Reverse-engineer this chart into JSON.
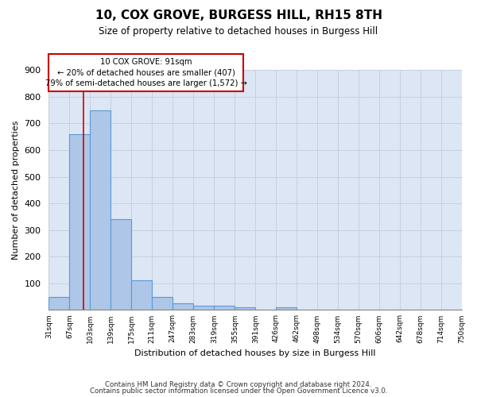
{
  "title": "10, COX GROVE, BURGESS HILL, RH15 8TH",
  "subtitle": "Size of property relative to detached houses in Burgess Hill",
  "xlabel": "Distribution of detached houses by size in Burgess Hill",
  "ylabel": "Number of detached properties",
  "footnote1": "Contains HM Land Registry data © Crown copyright and database right 2024.",
  "footnote2": "Contains public sector information licensed under the Open Government Licence v3.0.",
  "bar_edges": [
    31,
    67,
    103,
    139,
    175,
    211,
    247,
    283,
    319,
    355,
    391,
    426,
    462,
    498,
    534,
    570,
    606,
    642,
    678,
    714,
    750
  ],
  "bar_heights": [
    50,
    660,
    750,
    340,
    110,
    50,
    25,
    15,
    15,
    10,
    0,
    10,
    0,
    0,
    0,
    0,
    0,
    0,
    0,
    0
  ],
  "bar_color": "#aec6e8",
  "bar_edgecolor": "#5b9bd5",
  "bar_edgewidth": 0.8,
  "grid_color": "#c8d0dc",
  "background_color": "#dce6f5",
  "property_size": 91,
  "red_line_color": "#cc0000",
  "annotation_line1": "10 COX GROVE: 91sqm",
  "annotation_line2": "← 20% of detached houses are smaller (407)",
  "annotation_line3": "79% of semi-detached houses are larger (1,572) →",
  "annotation_box_color": "#cc0000",
  "ylim": [
    0,
    900
  ],
  "yticks": [
    100,
    200,
    300,
    400,
    500,
    600,
    700,
    800,
    900
  ],
  "bar_edges_ticks": [
    31,
    67,
    103,
    139,
    175,
    211,
    247,
    283,
    319,
    355,
    391,
    426,
    462,
    498,
    534,
    570,
    606,
    642,
    678,
    714,
    750
  ],
  "tick_labels": [
    "31sqm",
    "67sqm",
    "103sqm",
    "139sqm",
    "175sqm",
    "211sqm",
    "247sqm",
    "283sqm",
    "319sqm",
    "355sqm",
    "391sqm",
    "426sqm",
    "462sqm",
    "498sqm",
    "534sqm",
    "570sqm",
    "606sqm",
    "642sqm",
    "678sqm",
    "714sqm",
    "750sqm"
  ]
}
